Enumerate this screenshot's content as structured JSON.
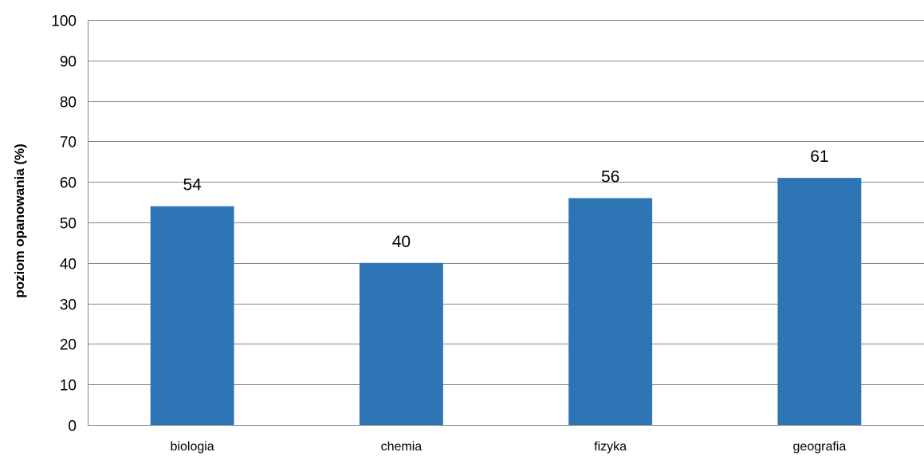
{
  "chart_data": {
    "type": "bar",
    "title": "",
    "xlabel": "",
    "ylabel": "poziom opanowania (%)",
    "categories": [
      "biologia",
      "chemia",
      "fizyka",
      "geografia"
    ],
    "values": [
      54,
      40,
      56,
      61
    ],
    "data_labels": [
      "54",
      "40",
      "56",
      "61"
    ],
    "ylim": [
      0,
      100
    ],
    "yticks": [
      0,
      10,
      20,
      30,
      40,
      50,
      60,
      70,
      80,
      90,
      100
    ],
    "grid": true,
    "legend": "none",
    "bar_color": "#2E75B6",
    "gridline_color": "#868686",
    "axis_color": "#868686"
  }
}
